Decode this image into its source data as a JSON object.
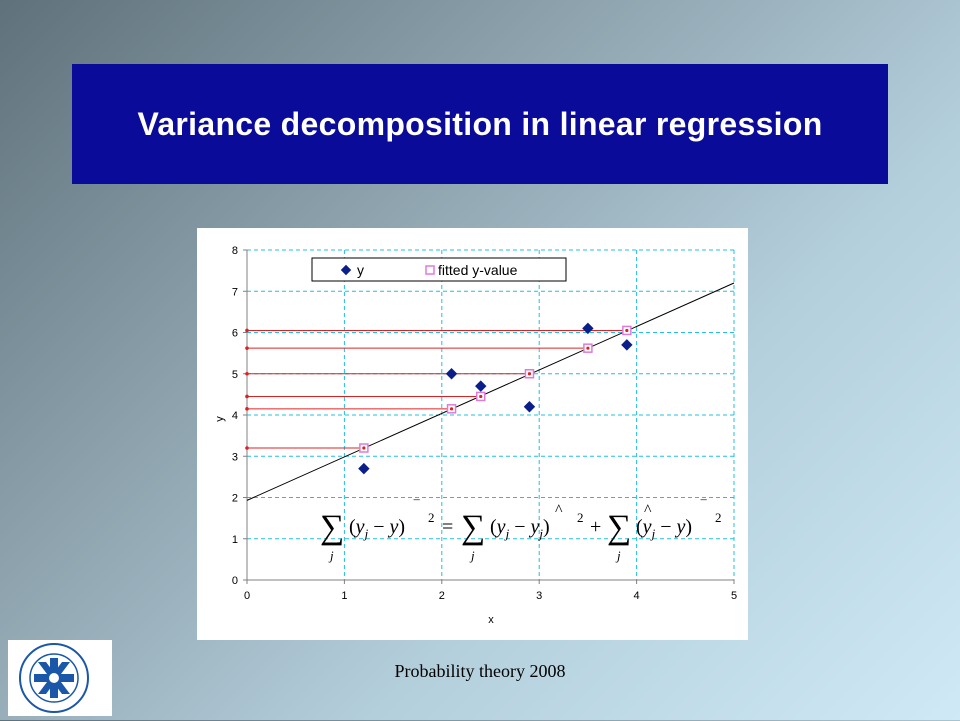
{
  "slide": {
    "title": "Variance decomposition in linear regression",
    "footer": "Probability theory 2008"
  },
  "logo": {
    "text_top": "LINKÖPINGS UNIVERSITET",
    "text_bottom": "LINKÖPINGS UNIVERSITET",
    "color": "#1a57a8"
  },
  "formula": {
    "text": "Σj (yj − ȳ)² = Σj (yj − ŷj)² + Σj (ŷj − ȳ)²"
  },
  "chart_data": {
    "type": "scatter",
    "title": "",
    "xlabel": "x",
    "ylabel": "y",
    "xlim": [
      0,
      5
    ],
    "ylim": [
      0,
      8
    ],
    "x_ticks": [
      "0",
      "1",
      "2",
      "3",
      "4",
      "5"
    ],
    "y_ticks": [
      "0",
      "1",
      "2",
      "3",
      "4",
      "5",
      "6",
      "7",
      "8"
    ],
    "grid": true,
    "legend_position": "top",
    "series": [
      {
        "name": "y",
        "marker": "diamond",
        "color": "#0a1f8a",
        "x": [
          1.2,
          2.1,
          2.4,
          2.9,
          3.5,
          3.9
        ],
        "y": [
          2.7,
          5.0,
          4.7,
          4.2,
          6.1,
          5.7
        ]
      },
      {
        "name": "fitted y-value",
        "marker": "square-open",
        "color": "#e07ad8",
        "x": [
          1.2,
          2.1,
          2.4,
          2.9,
          3.5,
          3.9
        ],
        "y": [
          3.2,
          4.15,
          4.45,
          5.0,
          5.62,
          6.05
        ]
      }
    ],
    "regression_line": {
      "x": [
        0,
        5
      ],
      "y": [
        1.93,
        7.2
      ]
    },
    "horizontal_reference_lines": [
      3.2,
      4.15,
      4.45,
      5.0,
      5.62,
      6.05
    ],
    "colors": {
      "grid": "#20c0e0",
      "reference": "#e02020",
      "line": "#000000"
    }
  }
}
